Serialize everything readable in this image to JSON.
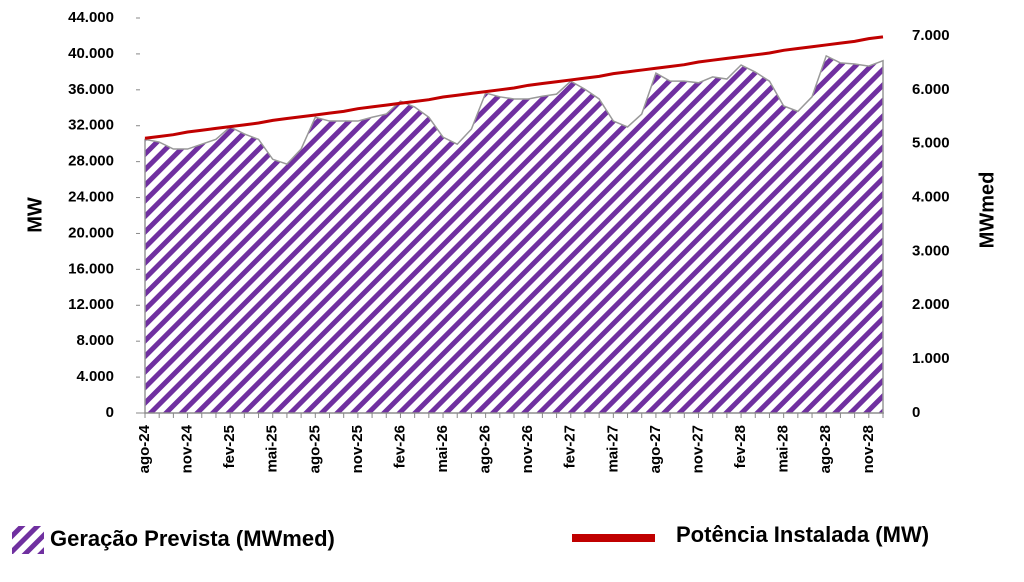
{
  "chart_data": {
    "type": "combo",
    "y_label": "MW",
    "y2_label": "MWmed",
    "categories": [
      "ago-24",
      null,
      null,
      "nov-24",
      null,
      null,
      "fev-25",
      null,
      null,
      "mai-25",
      null,
      null,
      "ago-25",
      null,
      null,
      "nov-25",
      null,
      null,
      "fev-26",
      null,
      null,
      "mai-26",
      null,
      null,
      "ago-26",
      null,
      null,
      "nov-26",
      null,
      null,
      "fev-27",
      null,
      null,
      "mai-27",
      null,
      null,
      "ago-27",
      null,
      null,
      "nov-27",
      null,
      null,
      "fev-28",
      null,
      null,
      "mai-28",
      null,
      null,
      "ago-28",
      null,
      null,
      "nov-28",
      null
    ],
    "series": [
      {
        "name": "Geração Prevista (MWmed)",
        "type": "area",
        "axis": "y2",
        "color": "#7030a0",
        "values": [
          5080,
          5030,
          4900,
          4900,
          4990,
          5080,
          5310,
          5180,
          5080,
          4710,
          4620,
          4900,
          5490,
          5420,
          5420,
          5420,
          5490,
          5550,
          5790,
          5680,
          5490,
          5120,
          4990,
          5270,
          5940,
          5870,
          5830,
          5830,
          5880,
          5920,
          6160,
          6010,
          5830,
          5420,
          5310,
          5550,
          6310,
          6160,
          6160,
          6130,
          6240,
          6200,
          6460,
          6330,
          6160,
          5700,
          5600,
          5870,
          6630,
          6500,
          6480,
          6440,
          6540
        ]
      },
      {
        "name": "Potência Instalada (MW)",
        "type": "line",
        "axis": "y",
        "color": "#c00000",
        "values": [
          30600,
          30800,
          31000,
          31300,
          31500,
          31700,
          31900,
          32100,
          32300,
          32600,
          32800,
          33000,
          33200,
          33400,
          33600,
          33900,
          34100,
          34300,
          34500,
          34700,
          34900,
          35200,
          35400,
          35600,
          35800,
          36000,
          36200,
          36500,
          36700,
          36900,
          37100,
          37300,
          37500,
          37800,
          38000,
          38200,
          38400,
          38600,
          38800,
          39100,
          39300,
          39500,
          39700,
          39900,
          40100,
          40400,
          40600,
          40800,
          41000,
          41200,
          41400,
          41700,
          41900
        ]
      }
    ],
    "ylim": [
      0,
      44000
    ],
    "yticks": [
      0,
      {
        "value": 4000,
        "label": "4.000"
      },
      {
        "value": 8000,
        "label": "8.000"
      },
      {
        "value": 12000,
        "label": "12.000"
      },
      {
        "value": 16000,
        "label": "16.000"
      },
      {
        "value": 20000,
        "label": "20.000"
      },
      {
        "value": 24000,
        "label": "24.000"
      },
      {
        "value": 28000,
        "label": "28.000"
      },
      {
        "value": 32000,
        "label": "32.000"
      },
      {
        "value": 36000,
        "label": "36.000"
      },
      {
        "value": 40000,
        "label": "40.000"
      },
      {
        "value": 44000,
        "label": "44.000"
      }
    ],
    "y2lim": [
      0,
      7333
    ],
    "y2ticks": [
      0,
      {
        "value": 1000,
        "label": "1.000"
      },
      {
        "value": 2000,
        "label": "2.000"
      },
      {
        "value": 3000,
        "label": "3.000"
      },
      {
        "value": 4000,
        "label": "4.000"
      },
      {
        "value": 5000,
        "label": "5.000"
      },
      {
        "value": 6000,
        "label": "6.000"
      },
      {
        "value": 7000,
        "label": "7.000"
      }
    ],
    "legend": "bottom"
  }
}
